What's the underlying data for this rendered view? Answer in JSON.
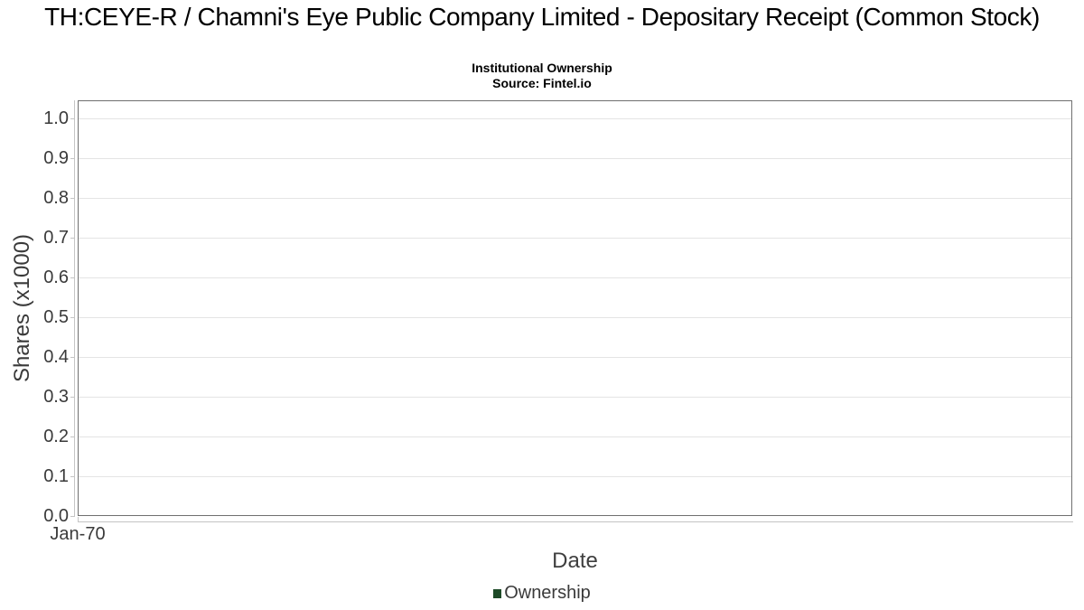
{
  "header": {
    "title": "TH:CEYE-R / Chamni's Eye Public Company Limited - Depositary Receipt (Common Stock)",
    "subtitle": "Institutional Ownership",
    "source": "Source: Fintel.io"
  },
  "chart_data": {
    "type": "bar",
    "title": "TH:CEYE-R / Chamni's Eye Public Company Limited - Depositary Receipt (Common Stock)",
    "subtitle": "Institutional Ownership",
    "source": "Source: Fintel.io",
    "xlabel": "Date",
    "ylabel": "Shares (x1000)",
    "ylim": [
      0.0,
      1.045
    ],
    "yticks": [
      "1.0",
      "0.9",
      "0.8",
      "0.7",
      "0.6",
      "0.5",
      "0.4",
      "0.3",
      "0.2",
      "0.1",
      "0.0"
    ],
    "xticks": [
      "Jan-70"
    ],
    "grid": true,
    "legend_position": "bottom",
    "series": [
      {
        "name": "Ownership",
        "color": "#1d4a27",
        "x": [],
        "values": []
      }
    ]
  },
  "colors": {
    "plot_border": "#6f6f6f",
    "gridline": "#e4e4e4",
    "axis_line": "#c4c4c4",
    "tick_label": "#3a3a3a",
    "title_text": "#000000",
    "legend_green": "#1d4a27"
  }
}
